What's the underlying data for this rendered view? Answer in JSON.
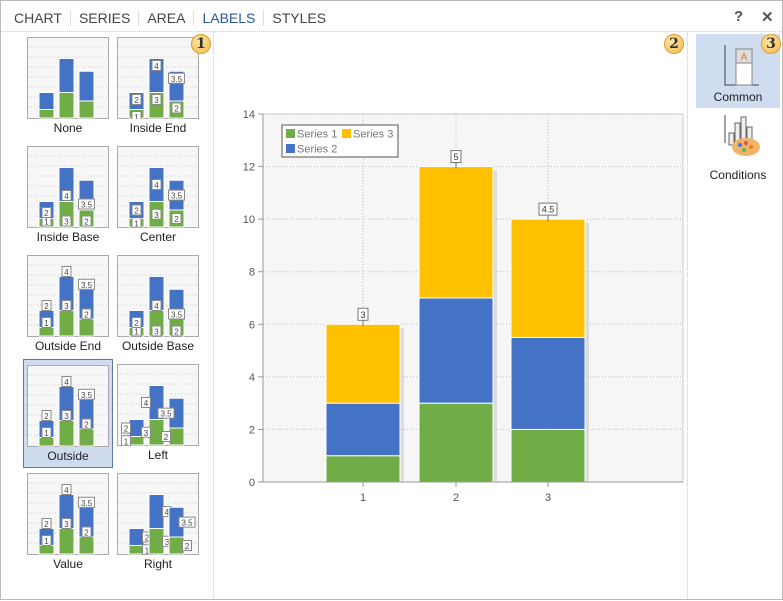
{
  "tabs": [
    {
      "label": "CHART"
    },
    {
      "label": "SERIES"
    },
    {
      "label": "AREA"
    },
    {
      "label": "LABELS",
      "active": true
    },
    {
      "label": "STYLES"
    }
  ],
  "header": {
    "help": "?",
    "close": "✕"
  },
  "badges": [
    "1",
    "2",
    "3"
  ],
  "label_modes": [
    {
      "label": "None"
    },
    {
      "label": "Inside End"
    },
    {
      "label": "Inside Base"
    },
    {
      "label": "Center"
    },
    {
      "label": "Outside End"
    },
    {
      "label": "Outside Base"
    },
    {
      "label": "Outside",
      "selected": true
    },
    {
      "label": "Left"
    },
    {
      "label": "Value"
    },
    {
      "label": "Right"
    }
  ],
  "side": {
    "common": "Common",
    "conditions": "Conditions"
  },
  "colors": {
    "series1": "#70ad47",
    "series2": "#4472c4",
    "series3": "#ffc000",
    "accent": "#2b579a"
  },
  "chart_data": {
    "type": "bar",
    "stacked": true,
    "categories": [
      "1",
      "2",
      "3"
    ],
    "series": [
      {
        "name": "Series 1",
        "values": [
          1,
          3,
          2
        ]
      },
      {
        "name": "Series 2",
        "values": [
          2,
          4,
          3.5
        ]
      },
      {
        "name": "Series 3",
        "values": [
          3,
          5,
          4.5
        ]
      }
    ],
    "ylim": [
      0,
      14
    ],
    "yticks": [
      "0",
      "2",
      "4",
      "6",
      "8",
      "10",
      "12",
      "14"
    ],
    "legend": "top-left",
    "grid": true
  }
}
